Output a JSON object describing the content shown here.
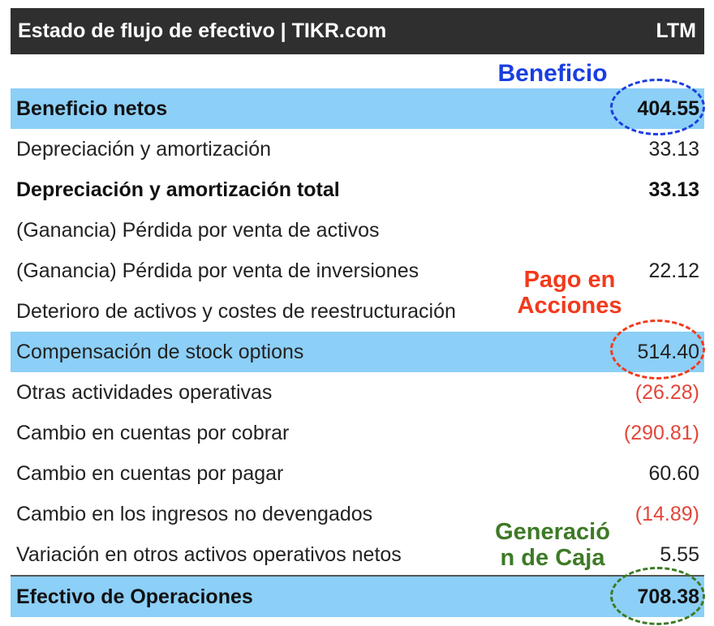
{
  "header": {
    "title": "Estado de flujo de efectivo | TIKR.com",
    "period": "LTM"
  },
  "rows": [
    {
      "label": "Beneficio netos",
      "value": "404.55"
    },
    {
      "label": "Depreciación y amortización",
      "value": "33.13"
    },
    {
      "label": "Depreciación y amortización total",
      "value": "33.13"
    },
    {
      "label": "(Ganancia) Pérdida por venta de activos",
      "value": ""
    },
    {
      "label": "(Ganancia) Pérdida por venta de inversiones",
      "value": "22.12"
    },
    {
      "label": "Deterioro de activos y costes de reestructuración",
      "value": ""
    },
    {
      "label": "Compensación de stock options",
      "value": "514.40"
    },
    {
      "label": "Otras actividades operativas",
      "value": "(26.28)"
    },
    {
      "label": "Cambio en cuentas por cobrar",
      "value": "(290.81)"
    },
    {
      "label": "Cambio en cuentas por pagar",
      "value": "60.60"
    },
    {
      "label": "Cambio en los ingresos no devengados",
      "value": "(14.89)"
    },
    {
      "label": "Variación en otros activos operativos netos",
      "value": "5.55"
    },
    {
      "label": "Efectivo de Operaciones",
      "value": "708.38"
    }
  ],
  "annotations": {
    "beneficio": "Beneficio",
    "pago_line1": "Pago en",
    "pago_line2": "Acciones",
    "generacion_line1": "Generació",
    "generacion_line2": "n de Caja"
  },
  "colors": {
    "header_bg": "#2f2f2f",
    "highlight": "#8ccff7",
    "negative": "#e2463a",
    "annot_blue": "#1a3ee0",
    "annot_red": "#f23a1c",
    "annot_green": "#3d7a25"
  }
}
